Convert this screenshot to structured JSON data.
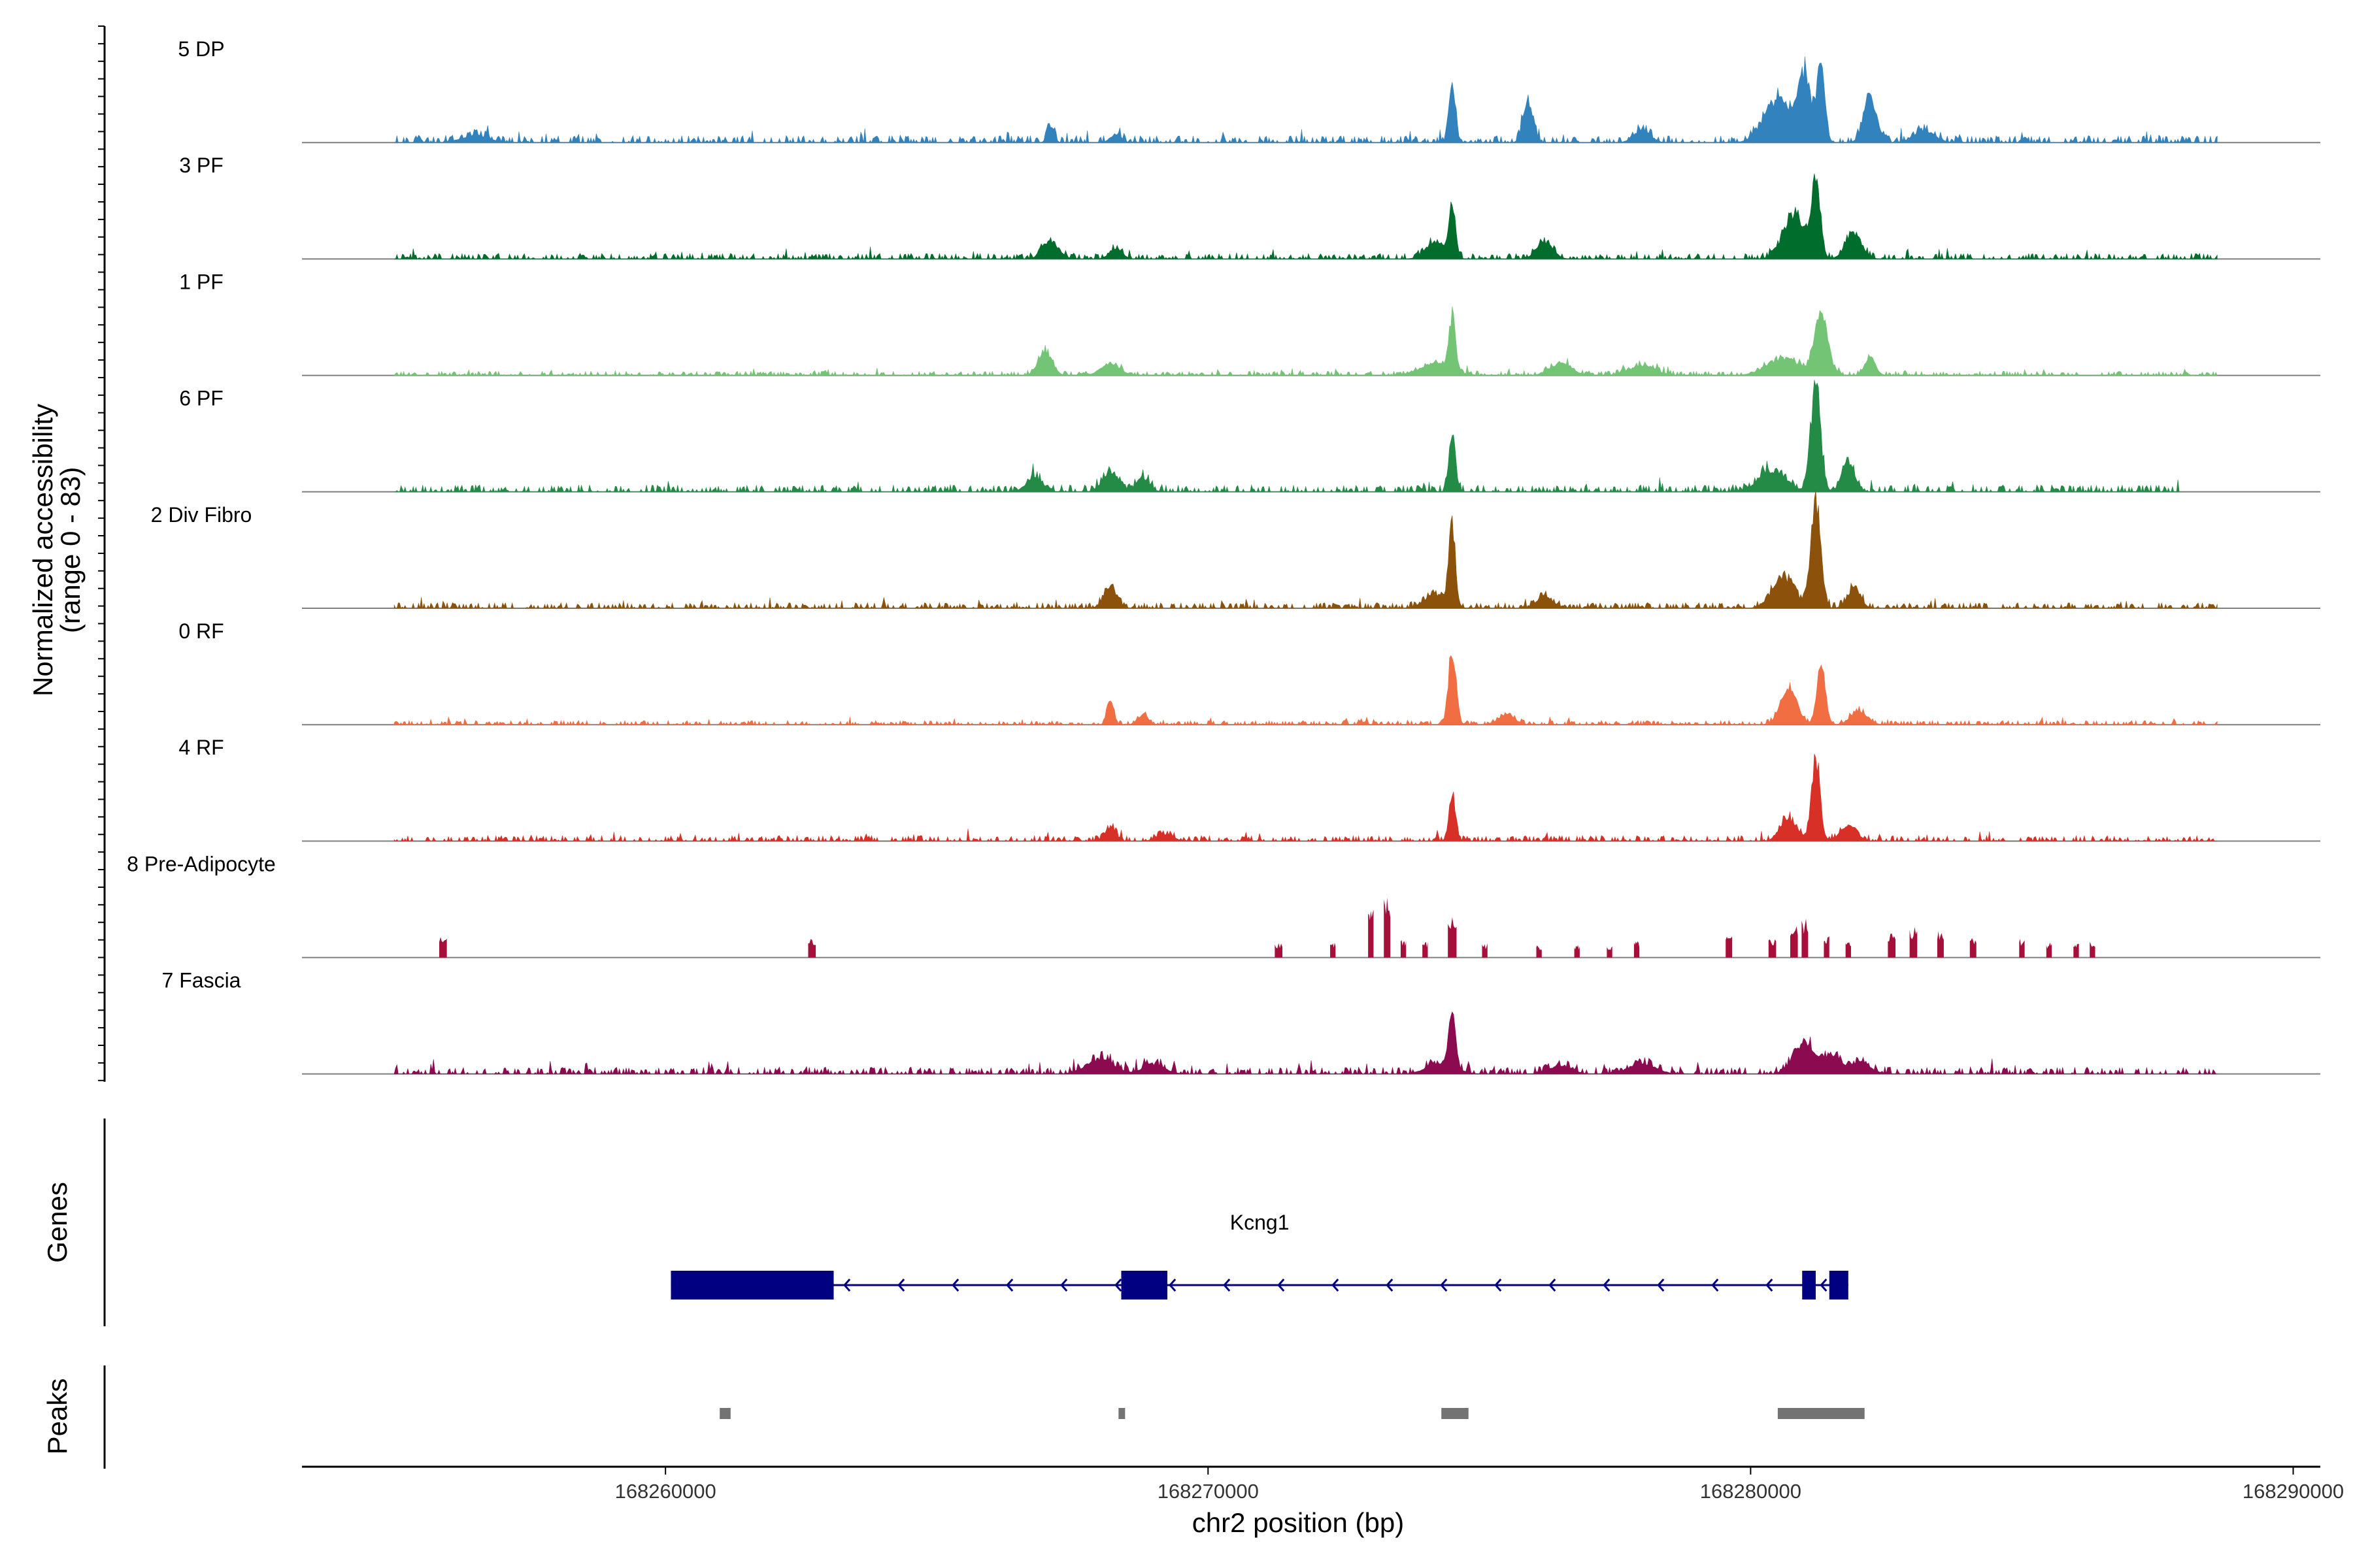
{
  "chart_data": {
    "type": "area",
    "title": "",
    "region": {
      "chrom": "chr2",
      "start": 168253300,
      "end": 168290500
    },
    "xlabel": "chr2 position (bp)",
    "x_ticks": [
      168260000,
      168270000,
      168280000,
      168290000
    ],
    "x_tick_labels": [
      "168260000",
      "168270000",
      "168280000",
      "168290000"
    ],
    "ylabel_line1": "Normalized accessibility",
    "ylabel_line2": "(range 0 - 83)",
    "ylim": [
      0,
      83
    ],
    "series": [
      {
        "name": "5 DP",
        "color": "#3182BD",
        "data_start": 168255000,
        "data_end": 168288600,
        "baseline": 2.5,
        "noise_seed": 1,
        "peaks": [
          [
            168256500,
            5,
            250
          ],
          [
            168267100,
            12,
            60
          ],
          [
            168268300,
            6,
            100
          ],
          [
            168274500,
            38,
            60
          ],
          [
            168275900,
            30,
            90
          ],
          [
            168278000,
            9,
            150
          ],
          [
            168280500,
            30,
            250
          ],
          [
            168281000,
            45,
            120
          ],
          [
            168281300,
            52,
            70
          ],
          [
            168282200,
            30,
            120
          ],
          [
            168283200,
            8,
            200
          ]
        ]
      },
      {
        "name": "3 PF",
        "color": "#006D2C",
        "data_start": 168255000,
        "data_end": 168288600,
        "baseline": 2,
        "noise_seed": 2,
        "peaks": [
          [
            168267100,
            12,
            150
          ],
          [
            168268300,
            7,
            120
          ],
          [
            168274200,
            12,
            180
          ],
          [
            168274500,
            35,
            60
          ],
          [
            168276200,
            12,
            150
          ],
          [
            168280800,
            30,
            200
          ],
          [
            168281200,
            52,
            80
          ],
          [
            168281900,
            18,
            150
          ]
        ]
      },
      {
        "name": "1 PF",
        "color": "#74C476",
        "data_start": 168255000,
        "data_end": 168288600,
        "baseline": 1.5,
        "noise_seed": 3,
        "peaks": [
          [
            168267000,
            16,
            130
          ],
          [
            168268200,
            8,
            180
          ],
          [
            168274200,
            8,
            300
          ],
          [
            168274500,
            37,
            60
          ],
          [
            168276500,
            8,
            200
          ],
          [
            168278000,
            7,
            250
          ],
          [
            168280600,
            12,
            300
          ],
          [
            168281300,
            44,
            120
          ],
          [
            168282200,
            12,
            100
          ]
        ]
      },
      {
        "name": "6 PF",
        "color": "#238B45",
        "data_start": 168255000,
        "data_end": 168287900,
        "baseline": 2.5,
        "noise_seed": 4,
        "peaks": [
          [
            168266800,
            10,
            150
          ],
          [
            168268200,
            14,
            150
          ],
          [
            168268800,
            10,
            120
          ],
          [
            168274500,
            42,
            60
          ],
          [
            168280400,
            15,
            250
          ],
          [
            168281200,
            75,
            90
          ],
          [
            168281800,
            20,
            120
          ]
        ]
      },
      {
        "name": "2 Div Fibro",
        "color": "#8C510A",
        "data_start": 168255000,
        "data_end": 168288600,
        "baseline": 2,
        "noise_seed": 5,
        "peaks": [
          [
            168268200,
            15,
            120
          ],
          [
            168274200,
            10,
            200
          ],
          [
            168274500,
            54,
            60
          ],
          [
            168276200,
            8,
            150
          ],
          [
            168280600,
            22,
            200
          ],
          [
            168281200,
            76,
            90
          ],
          [
            168281900,
            14,
            120
          ]
        ]
      },
      {
        "name": "0 RF",
        "color": "#F16D42",
        "data_start": 168255000,
        "data_end": 168288600,
        "baseline": 1.5,
        "noise_seed": 6,
        "peaks": [
          [
            168268200,
            18,
            60
          ],
          [
            168268800,
            7,
            100
          ],
          [
            168274500,
            51,
            70
          ],
          [
            168275500,
            7,
            150
          ],
          [
            168280700,
            25,
            150
          ],
          [
            168281300,
            40,
            80
          ],
          [
            168282000,
            10,
            150
          ]
        ]
      },
      {
        "name": "4 RF",
        "color": "#D73027",
        "data_start": 168255000,
        "data_end": 168288600,
        "baseline": 2,
        "noise_seed": 7,
        "peaks": [
          [
            168268200,
            10,
            100
          ],
          [
            168269200,
            5,
            150
          ],
          [
            168274500,
            33,
            60
          ],
          [
            168280700,
            16,
            150
          ],
          [
            168281200,
            56,
            80
          ],
          [
            168281800,
            10,
            150
          ]
        ]
      },
      {
        "name": "8 Pre-Adipocyte",
        "color": "#A50F3A",
        "data_start": 168255000,
        "data_end": 168288600,
        "baseline": 0,
        "noise_seed": 8,
        "sparse": true,
        "bars": [
          [
            168255900,
            13,
            140
          ],
          [
            168262700,
            12,
            140
          ],
          [
            168271300,
            10,
            140
          ],
          [
            168272300,
            10,
            100
          ],
          [
            168273000,
            30,
            100
          ],
          [
            168273300,
            38,
            120
          ],
          [
            168273600,
            12,
            100
          ],
          [
            168274000,
            10,
            100
          ],
          [
            168274500,
            26,
            160
          ],
          [
            168275100,
            9,
            100
          ],
          [
            168276100,
            8,
            100
          ],
          [
            168276800,
            8,
            100
          ],
          [
            168277400,
            7,
            100
          ],
          [
            168277900,
            10,
            100
          ],
          [
            168279600,
            13,
            120
          ],
          [
            168280400,
            12,
            140
          ],
          [
            168280800,
            20,
            140
          ],
          [
            168281000,
            24,
            120
          ],
          [
            168281400,
            14,
            100
          ],
          [
            168281800,
            10,
            100
          ],
          [
            168282600,
            16,
            140
          ],
          [
            168283000,
            20,
            140
          ],
          [
            168283500,
            18,
            120
          ],
          [
            168284100,
            14,
            120
          ],
          [
            168285000,
            12,
            100
          ],
          [
            168285500,
            10,
            100
          ],
          [
            168286000,
            9,
            100
          ],
          [
            168286300,
            10,
            100
          ]
        ]
      },
      {
        "name": "7 Fascia",
        "color": "#8B0A50",
        "data_start": 168255000,
        "data_end": 168288600,
        "baseline": 2.5,
        "noise_seed": 9,
        "peaks": [
          [
            168268000,
            10,
            250
          ],
          [
            168269000,
            7,
            200
          ],
          [
            168274300,
            8,
            250
          ],
          [
            168274500,
            39,
            60
          ],
          [
            168276500,
            6,
            200
          ],
          [
            168278000,
            7,
            250
          ],
          [
            168281000,
            22,
            200
          ],
          [
            168281500,
            12,
            150
          ],
          [
            168282000,
            8,
            200
          ]
        ]
      }
    ],
    "gene_track": {
      "title": "Genes",
      "gene_name": "Kcng1",
      "strand": "-",
      "color": "#000080",
      "start": 168260100,
      "end": 168281800,
      "exons": [
        [
          168260100,
          168263100
        ],
        [
          168268400,
          168269250
        ],
        [
          168280950,
          168281200
        ],
        [
          168281450,
          168281800
        ]
      ]
    },
    "peak_track": {
      "title": "Peaks",
      "color": "#737373",
      "peaks": [
        [
          168261000,
          168261200
        ],
        [
          168268350,
          168268450
        ],
        [
          168274300,
          168274800
        ],
        [
          168280500,
          168282100
        ]
      ]
    }
  }
}
